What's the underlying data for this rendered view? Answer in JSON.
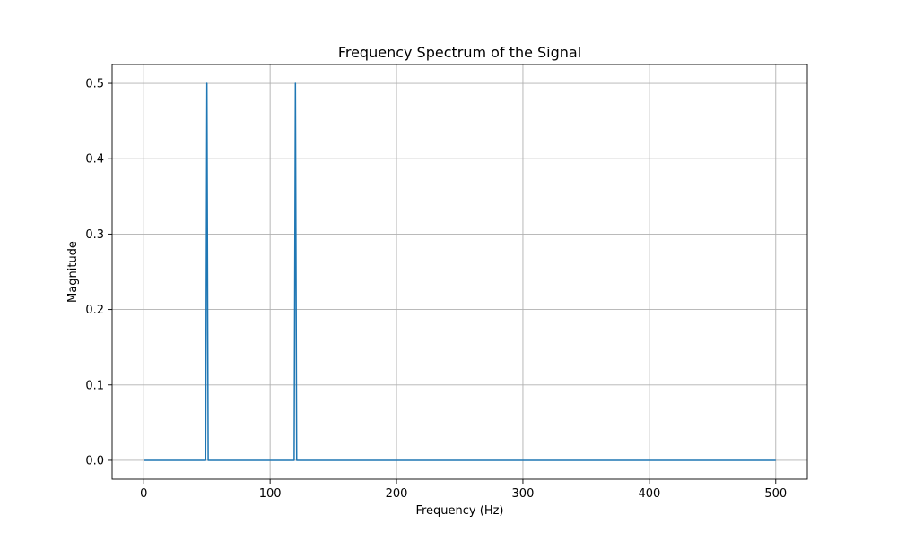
{
  "chart_data": {
    "type": "line",
    "title": "Frequency Spectrum of the Signal",
    "xlabel": "Frequency (Hz)",
    "ylabel": "Magnitude",
    "xlim": [
      -25,
      525
    ],
    "ylim": [
      -0.025,
      0.525
    ],
    "xticks": [
      0,
      100,
      200,
      300,
      400,
      500
    ],
    "xtick_labels": [
      "0",
      "100",
      "200",
      "300",
      "400",
      "500"
    ],
    "yticks": [
      0.0,
      0.1,
      0.2,
      0.3,
      0.4,
      0.5
    ],
    "ytick_labels": [
      "0.0",
      "0.1",
      "0.2",
      "0.3",
      "0.4",
      "0.5"
    ],
    "grid": true,
    "series": [
      {
        "color": "#1f77b4",
        "x": [
          0,
          49,
          50,
          51,
          119,
          120,
          121,
          500
        ],
        "y": [
          0,
          0,
          0.5,
          0,
          0,
          0.5,
          0,
          0
        ]
      }
    ]
  }
}
